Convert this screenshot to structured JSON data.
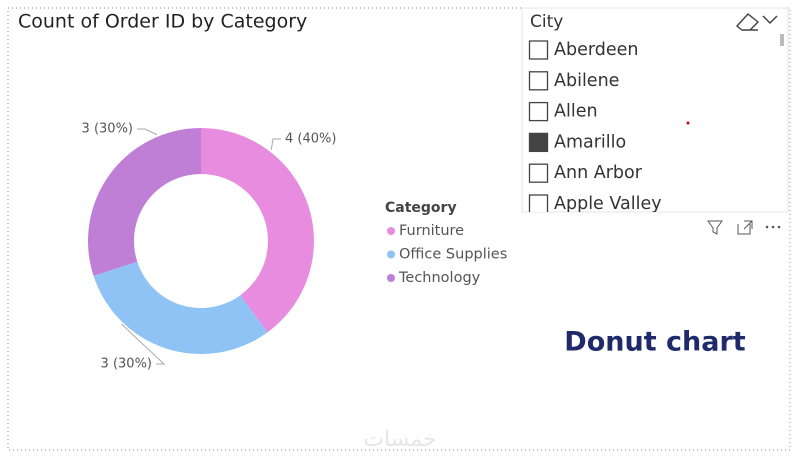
{
  "chart_data": {
    "type": "donut",
    "title": "Count of Order ID by Category",
    "legend_title": "Category",
    "categories": [
      "Furniture",
      "Office Supplies",
      "Technology"
    ],
    "values": [
      4,
      3,
      3
    ],
    "value_labels": [
      "4 (40%)",
      "3 (30%)",
      "3 (30%)"
    ],
    "colors": [
      "#e88ce0",
      "#8fc3f5",
      "#c07fd6"
    ]
  },
  "slicer": {
    "title": "City",
    "items": [
      {
        "label": "Aberdeen",
        "checked": false
      },
      {
        "label": "Abilene",
        "checked": false
      },
      {
        "label": "Allen",
        "checked": false
      },
      {
        "label": "Amarillo",
        "checked": true
      },
      {
        "label": "Ann Arbor",
        "checked": false
      },
      {
        "label": "Apple Valley",
        "checked": false
      }
    ]
  },
  "annotation": "Donut chart",
  "watermark": "خمسات"
}
